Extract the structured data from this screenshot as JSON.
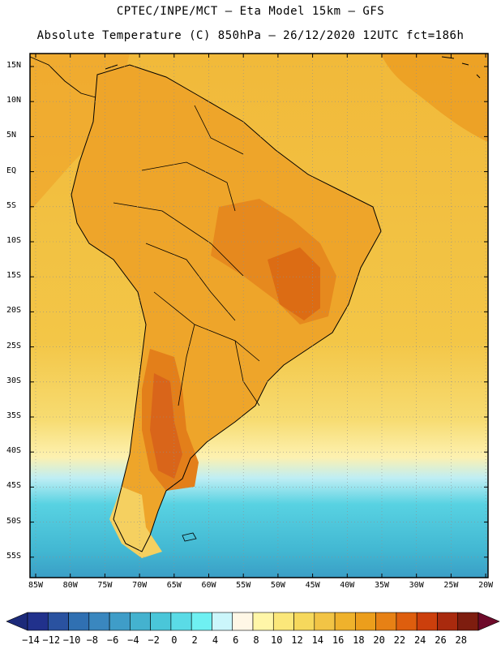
{
  "title_line1": "CPTEC/INPE/MCT –  Eta Model 15km – GFS",
  "title_line2": "Absolute Temperature (C) 850hPa – 26/12/2020 12UTC fct=186h",
  "lat_labels": [
    "15N",
    "10N",
    "5N",
    "EQ",
    "5S",
    "10S",
    "15S",
    "20S",
    "25S",
    "30S",
    "35S",
    "40S",
    "45S",
    "50S",
    "55S"
  ],
  "lon_labels": [
    "85W",
    "80W",
    "75W",
    "70W",
    "65W",
    "60W",
    "55W",
    "50W",
    "45W",
    "40W",
    "35W",
    "30W",
    "25W",
    "20W"
  ],
  "colorbar": {
    "labels": [
      "-14",
      "-12",
      "-10",
      "-8",
      "-6",
      "-4",
      "-2",
      "0",
      "2",
      "4",
      "6",
      "8",
      "10",
      "12",
      "14",
      "16",
      "18",
      "20",
      "22",
      "24",
      "26",
      "28"
    ],
    "colors": [
      "#21318c",
      "#2a52a0",
      "#3070b2",
      "#3a87bf",
      "#3f9dc8",
      "#44b2cf",
      "#4ac6d9",
      "#5adbe6",
      "#6ff0f2",
      "#cbf6fb",
      "#fff7e6",
      "#fff6a8",
      "#fbe77a",
      "#f6d85c",
      "#f2c445",
      "#efb22c",
      "#ec9e1c",
      "#e78115",
      "#de5e0e",
      "#cc3f0c",
      "#a92a0e",
      "#7e1d0f"
    ]
  },
  "colors": {
    "ocean_warm": "#f3c241",
    "land_main": "#eea52a",
    "land_hot": "#e07a1a",
    "ocean_cold": "#4cc7db",
    "frame": "#000000"
  }
}
